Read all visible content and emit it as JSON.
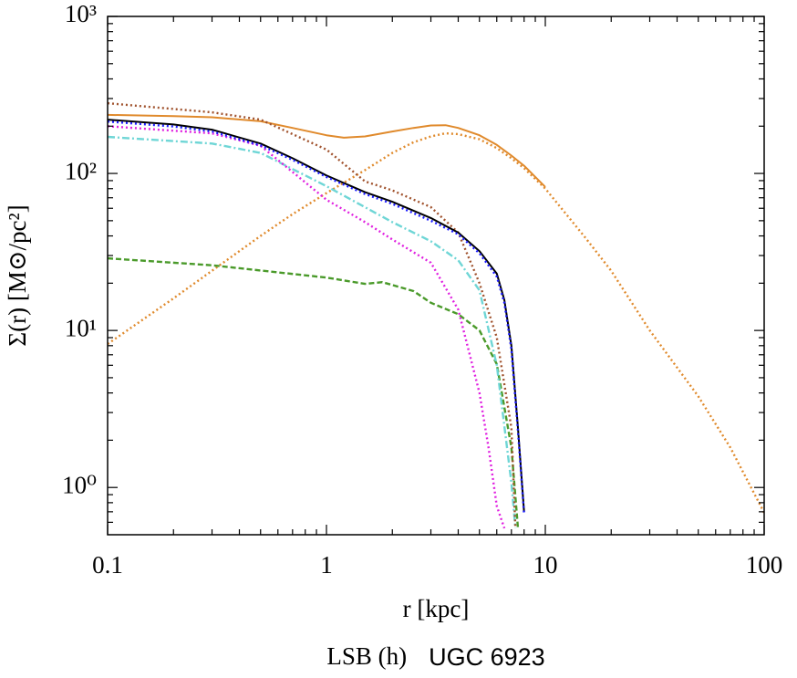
{
  "chart_data": {
    "type": "line",
    "x_label": "r [kpc]",
    "y_label": "Σ(r) [M⊙/pc²]",
    "footer": {
      "sample": "LSB (h)",
      "galaxy": "UGC 6923"
    },
    "xscale": "log",
    "yscale": "log",
    "xlim": [
      0.1,
      100
    ],
    "ylim": [
      0.5,
      1000
    ],
    "xticks": [
      0.1,
      1,
      10,
      100
    ],
    "xminorticks": [
      0.2,
      0.3,
      0.4,
      0.5,
      0.6,
      0.7,
      0.8,
      0.9,
      2,
      3,
      4,
      5,
      6,
      7,
      8,
      9,
      20,
      30,
      40,
      50,
      60,
      70,
      80,
      90
    ],
    "yticks": [
      {
        "value": 1,
        "label": "10⁰"
      },
      {
        "value": 10,
        "label": "10¹"
      },
      {
        "value": 100,
        "label": "10²"
      },
      {
        "value": 1000,
        "label": "10³"
      }
    ],
    "yminorticks": [
      0.6,
      0.7,
      0.8,
      0.9,
      2,
      3,
      4,
      5,
      6,
      7,
      8,
      9,
      20,
      30,
      40,
      50,
      60,
      70,
      80,
      90,
      200,
      300,
      400,
      500,
      600,
      700,
      800,
      900
    ],
    "series": [
      {
        "color": "#e08a2c",
        "linestyle": "dotted",
        "x": [
          0.1,
          0.2,
          0.3,
          0.5,
          0.7,
          1,
          1.5,
          2,
          2.5,
          3,
          3.5,
          4,
          5,
          6,
          7,
          8,
          10,
          15,
          20,
          30,
          50,
          70,
          100
        ],
        "values": [
          8.2,
          16,
          24,
          40,
          55,
          75,
          105,
          135,
          158,
          172,
          180,
          178,
          165,
          145,
          125,
          108,
          80,
          40,
          24,
          10,
          3.8,
          1.8,
          0.69
        ]
      },
      {
        "color": "#e08a2c",
        "linestyle": "solid",
        "x": [
          0.1,
          0.2,
          0.3,
          0.5,
          0.7,
          1,
          1.2,
          1.5,
          2,
          2.5,
          3,
          3.5,
          4,
          5,
          6,
          7,
          8,
          10
        ],
        "values": [
          236,
          232,
          228,
          215,
          195,
          175,
          169,
          172,
          185,
          195,
          202,
          203,
          195,
          175,
          152,
          130,
          112,
          82
        ]
      },
      {
        "color": "#4a9a2a",
        "linestyle": "dashed",
        "x": [
          0.1,
          0.3,
          1,
          1.5,
          1.8,
          2.5,
          3,
          4,
          5,
          6,
          7,
          7.5
        ],
        "values": [
          28.8,
          26,
          21.7,
          19.8,
          20.3,
          17.8,
          15,
          12.7,
          10,
          6.1,
          1.8,
          0.55
        ]
      },
      {
        "color": "#6fd6d6",
        "linestyle": "dashdot",
        "x": [
          0.1,
          0.3,
          0.5,
          1,
          2,
          3,
          4,
          5,
          6,
          7,
          7.3
        ],
        "values": [
          171,
          155,
          135,
          83,
          49,
          37,
          28,
          18,
          6,
          1.07,
          0.55
        ]
      },
      {
        "color": "#a0522d",
        "linestyle": "dotted",
        "x": [
          0.1,
          0.3,
          0.5,
          1,
          1.5,
          2,
          3,
          4,
          5,
          6,
          7,
          7.3
        ],
        "values": [
          280,
          245,
          220,
          142,
          89,
          78,
          61,
          42,
          20,
          9,
          2.4,
          0.55
        ]
      },
      {
        "color": "#e020e0",
        "linestyle": "dotted",
        "x": [
          0.1,
          0.3,
          0.5,
          1,
          1.5,
          2,
          3,
          4,
          5,
          5.5,
          6,
          6.5
        ],
        "values": [
          200,
          180,
          150,
          68,
          49,
          38,
          27,
          13.6,
          4,
          1.8,
          0.76,
          0.55
        ]
      },
      {
        "color": "#000000",
        "linestyle": "solid",
        "x": [
          0.1,
          0.2,
          0.3,
          0.5,
          0.7,
          1,
          1.5,
          2,
          3,
          4,
          5,
          6,
          6.5,
          7,
          7.5,
          8
        ],
        "values": [
          220,
          205,
          190,
          155,
          125,
          97,
          76,
          66,
          52,
          42,
          32,
          23,
          15.6,
          8,
          2.4,
          0.7
        ]
      },
      {
        "color": "#1a1aff",
        "linestyle": "dotted",
        "x": [
          0.1,
          0.2,
          0.3,
          0.5,
          0.7,
          1,
          1.5,
          2,
          3,
          4,
          5,
          6,
          6.5,
          7,
          7.5,
          8
        ],
        "values": [
          214,
          199,
          185,
          151,
          122,
          95,
          74,
          64,
          50,
          41,
          31,
          22,
          15,
          7.6,
          2.3,
          0.68
        ]
      }
    ]
  }
}
